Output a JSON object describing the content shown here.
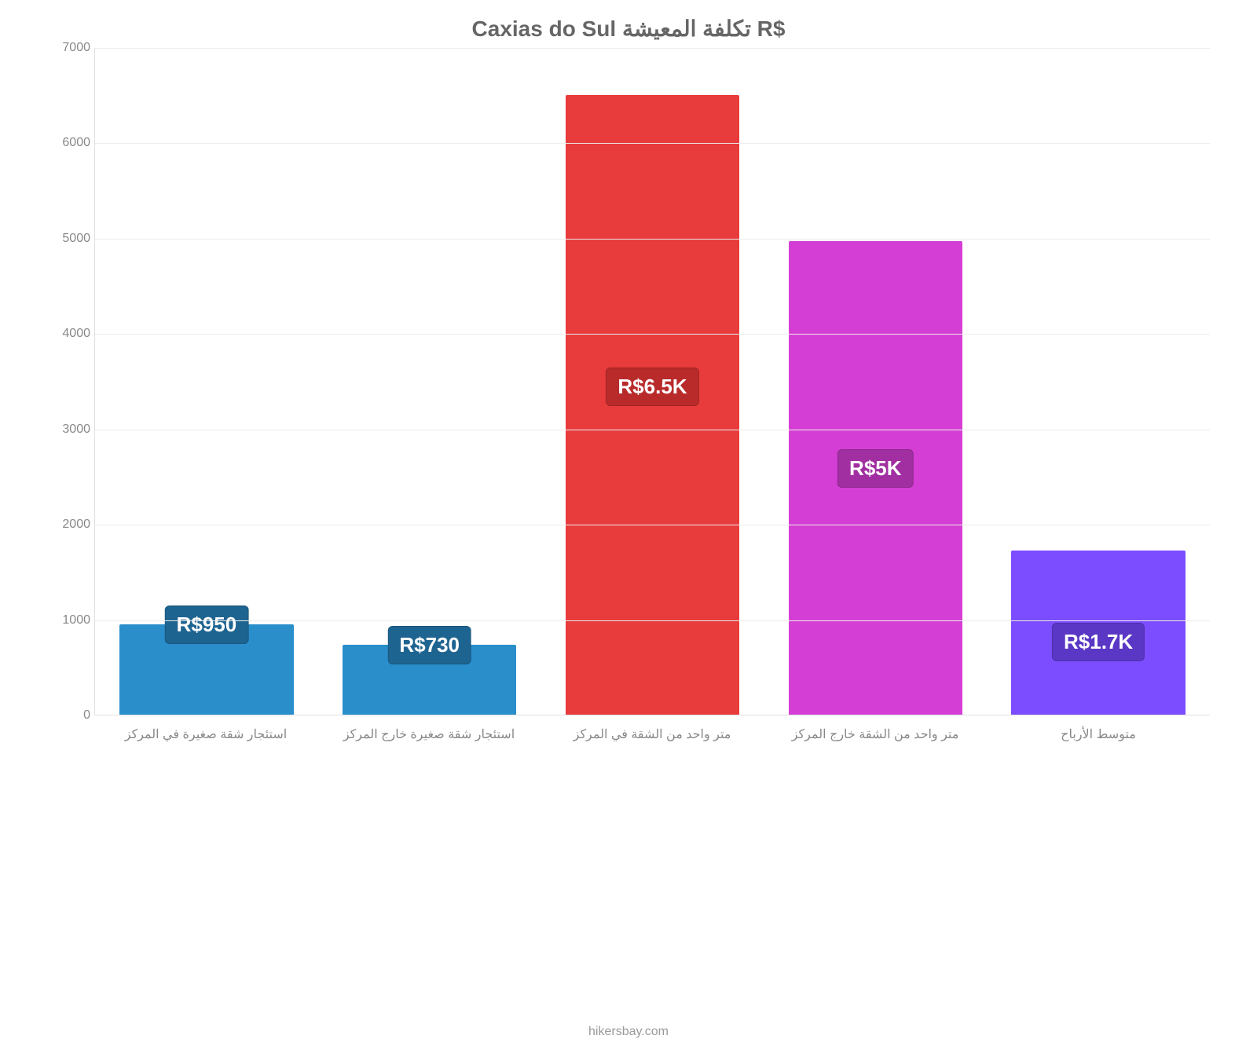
{
  "chart": {
    "type": "bar",
    "title": "Caxias do Sul تكلفة المعيشة R$",
    "title_fontsize": 28,
    "title_color": "#666666",
    "background_color": "#ffffff",
    "grid_color": "#ececec",
    "axis_color": "#e0e0e0",
    "tick_color": "#888888",
    "xlabel_color": "#888888",
    "ymin": 0,
    "ymax": 7000,
    "ytick_step": 1000,
    "yticks": [
      0,
      1000,
      2000,
      3000,
      4000,
      5000,
      6000,
      7000
    ],
    "bar_width_pct": 78,
    "categories": [
      "استئجار شقة صغيرة في المركز",
      "استئجار شقة صغيرة خارج المركز",
      "متر واحد من الشقة في المركز",
      "متر واحد من الشقة خارج المركز",
      "متوسط الأرباح"
    ],
    "values": [
      950,
      730,
      6500,
      4970,
      1720
    ],
    "value_labels": [
      "R$950",
      "R$730",
      "R$6.5K",
      "R$5K",
      "R$1.7K"
    ],
    "bar_colors": [
      "#2a8ecb",
      "#2a8ecb",
      "#e83b3b",
      "#d53ed5",
      "#7c4dff"
    ],
    "label_bg_colors": [
      "#1e6491",
      "#1e6491",
      "#b92b2b",
      "#a12fa1",
      "#5a37c5"
    ],
    "label_fontsize": 26,
    "label_text_color": "#ffffff",
    "credit": "hikersbay.com",
    "credit_color": "#9a9a9a"
  }
}
